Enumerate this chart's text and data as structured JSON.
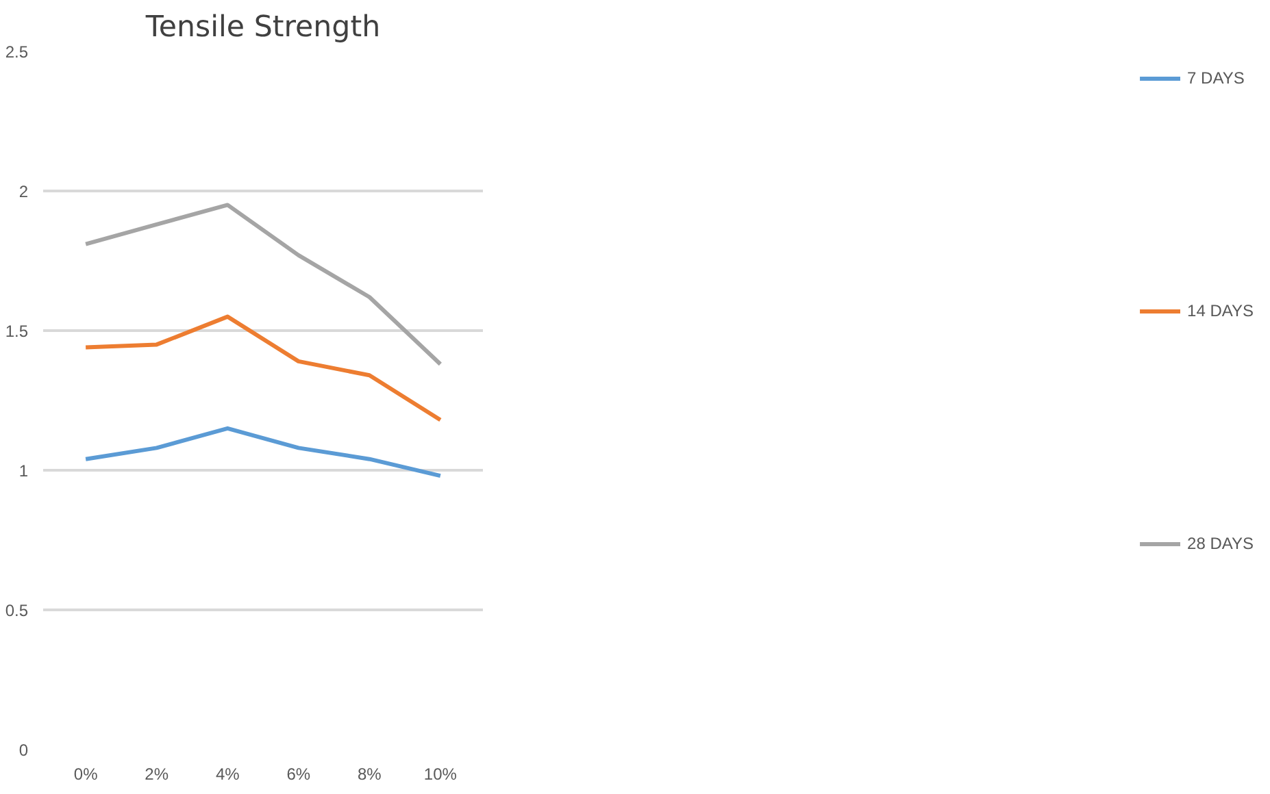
{
  "chart_data": {
    "type": "line",
    "title": "Tensile Strength",
    "categories": [
      "0%",
      "2%",
      "4%",
      "6%",
      "8%",
      "10%"
    ],
    "series": [
      {
        "name": "7 DAYS",
        "color": "#5b9bd5",
        "values": [
          1.04,
          1.08,
          1.15,
          1.08,
          1.04,
          0.98
        ]
      },
      {
        "name": "14 DAYS",
        "color": "#ed7d31",
        "values": [
          1.44,
          1.45,
          1.55,
          1.39,
          1.34,
          1.18
        ]
      },
      {
        "name": "28 DAYS",
        "color": "#a5a5a5",
        "values": [
          1.81,
          1.88,
          1.95,
          1.77,
          1.62,
          1.38
        ]
      }
    ],
    "ylim": [
      0,
      2.5
    ],
    "yticks": [
      0,
      0.5,
      1,
      1.5,
      2,
      2.5
    ],
    "grid": "y",
    "legend": "right",
    "marker": "none",
    "line_style": "solid"
  }
}
